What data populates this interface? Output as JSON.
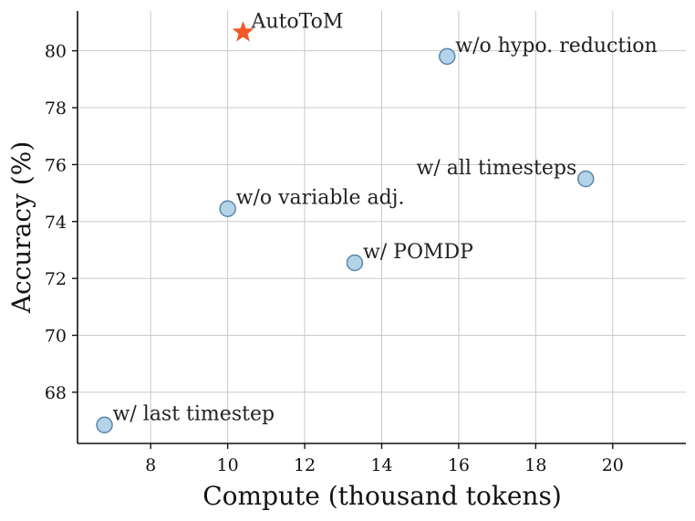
{
  "chart_data": {
    "type": "scatter",
    "xlabel": "Compute (thousand tokens)",
    "ylabel": "Accuracy (%)",
    "xlim": [
      6.1,
      21.9
    ],
    "ylim": [
      66.2,
      81.4
    ],
    "xticks": [
      8,
      10,
      12,
      14,
      16,
      18,
      20
    ],
    "yticks": [
      68,
      70,
      72,
      74,
      76,
      78,
      80
    ],
    "grid": true,
    "colors": {
      "point_fill": "#b3d3e8",
      "point_stroke": "#5a86a8",
      "highlight": "#f15a24"
    },
    "points": [
      {
        "label": "AutoToM",
        "x": 10.4,
        "y": 80.65,
        "marker": "star",
        "label_align": "right"
      },
      {
        "label": "w/o hypo. reduction",
        "x": 15.7,
        "y": 79.8,
        "marker": "circle",
        "label_align": "right"
      },
      {
        "label": "w/ all timesteps",
        "x": 19.3,
        "y": 75.5,
        "marker": "circle",
        "label_align": "left"
      },
      {
        "label": "w/o variable adj.",
        "x": 10.0,
        "y": 74.45,
        "marker": "circle",
        "label_align": "right"
      },
      {
        "label": "w/ POMDP",
        "x": 13.3,
        "y": 72.55,
        "marker": "circle",
        "label_align": "right"
      },
      {
        "label": "w/ last timestep",
        "x": 6.8,
        "y": 66.85,
        "marker": "circle",
        "label_align": "right"
      }
    ]
  }
}
